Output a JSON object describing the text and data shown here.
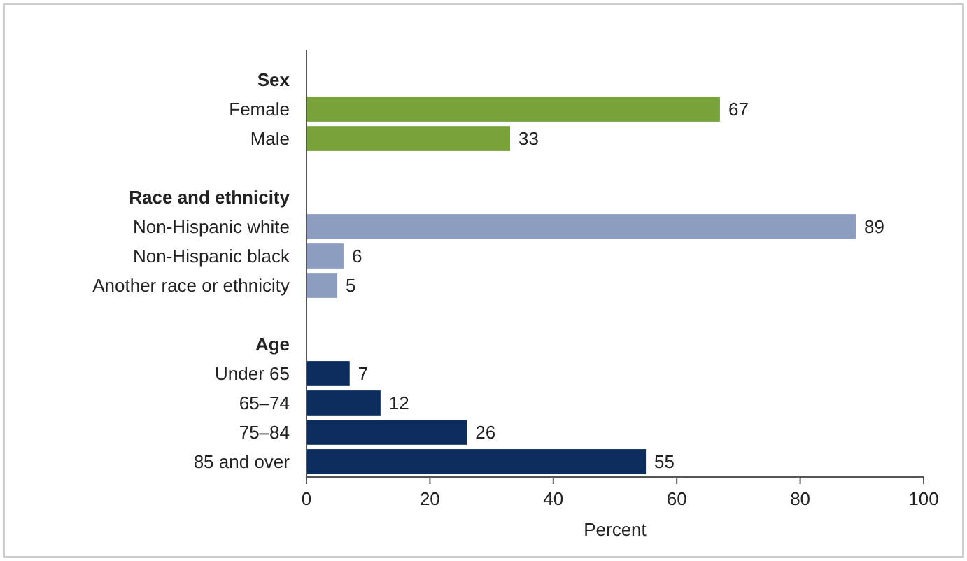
{
  "chart_data": {
    "type": "bar",
    "orientation": "horizontal",
    "xlabel": "Percent",
    "categories": [
      "Sex",
      "Female",
      "Male",
      null,
      "Race and ethnicity",
      "Non-Hispanic white",
      "Non-Hispanic black",
      "Another race or ethnicity",
      null,
      "Age",
      "Under 65",
      "65–74",
      "75–84",
      "85 and over"
    ],
    "values": [
      null,
      67,
      33,
      null,
      null,
      89,
      6,
      5,
      null,
      null,
      7,
      12,
      26,
      55
    ],
    "colors": [
      null,
      "#77a33a",
      "#77a33a",
      null,
      null,
      "#8c9dbf",
      "#8c9dbf",
      "#8c9dbf",
      null,
      null,
      "#0b2c5c",
      "#0b2c5c",
      "#0b2c5c",
      "#0b2c5c"
    ],
    "xlim": [
      0,
      100
    ],
    "xticks": [
      0,
      20,
      40,
      60,
      80,
      100
    ],
    "data_labels": true,
    "grid": false
  }
}
